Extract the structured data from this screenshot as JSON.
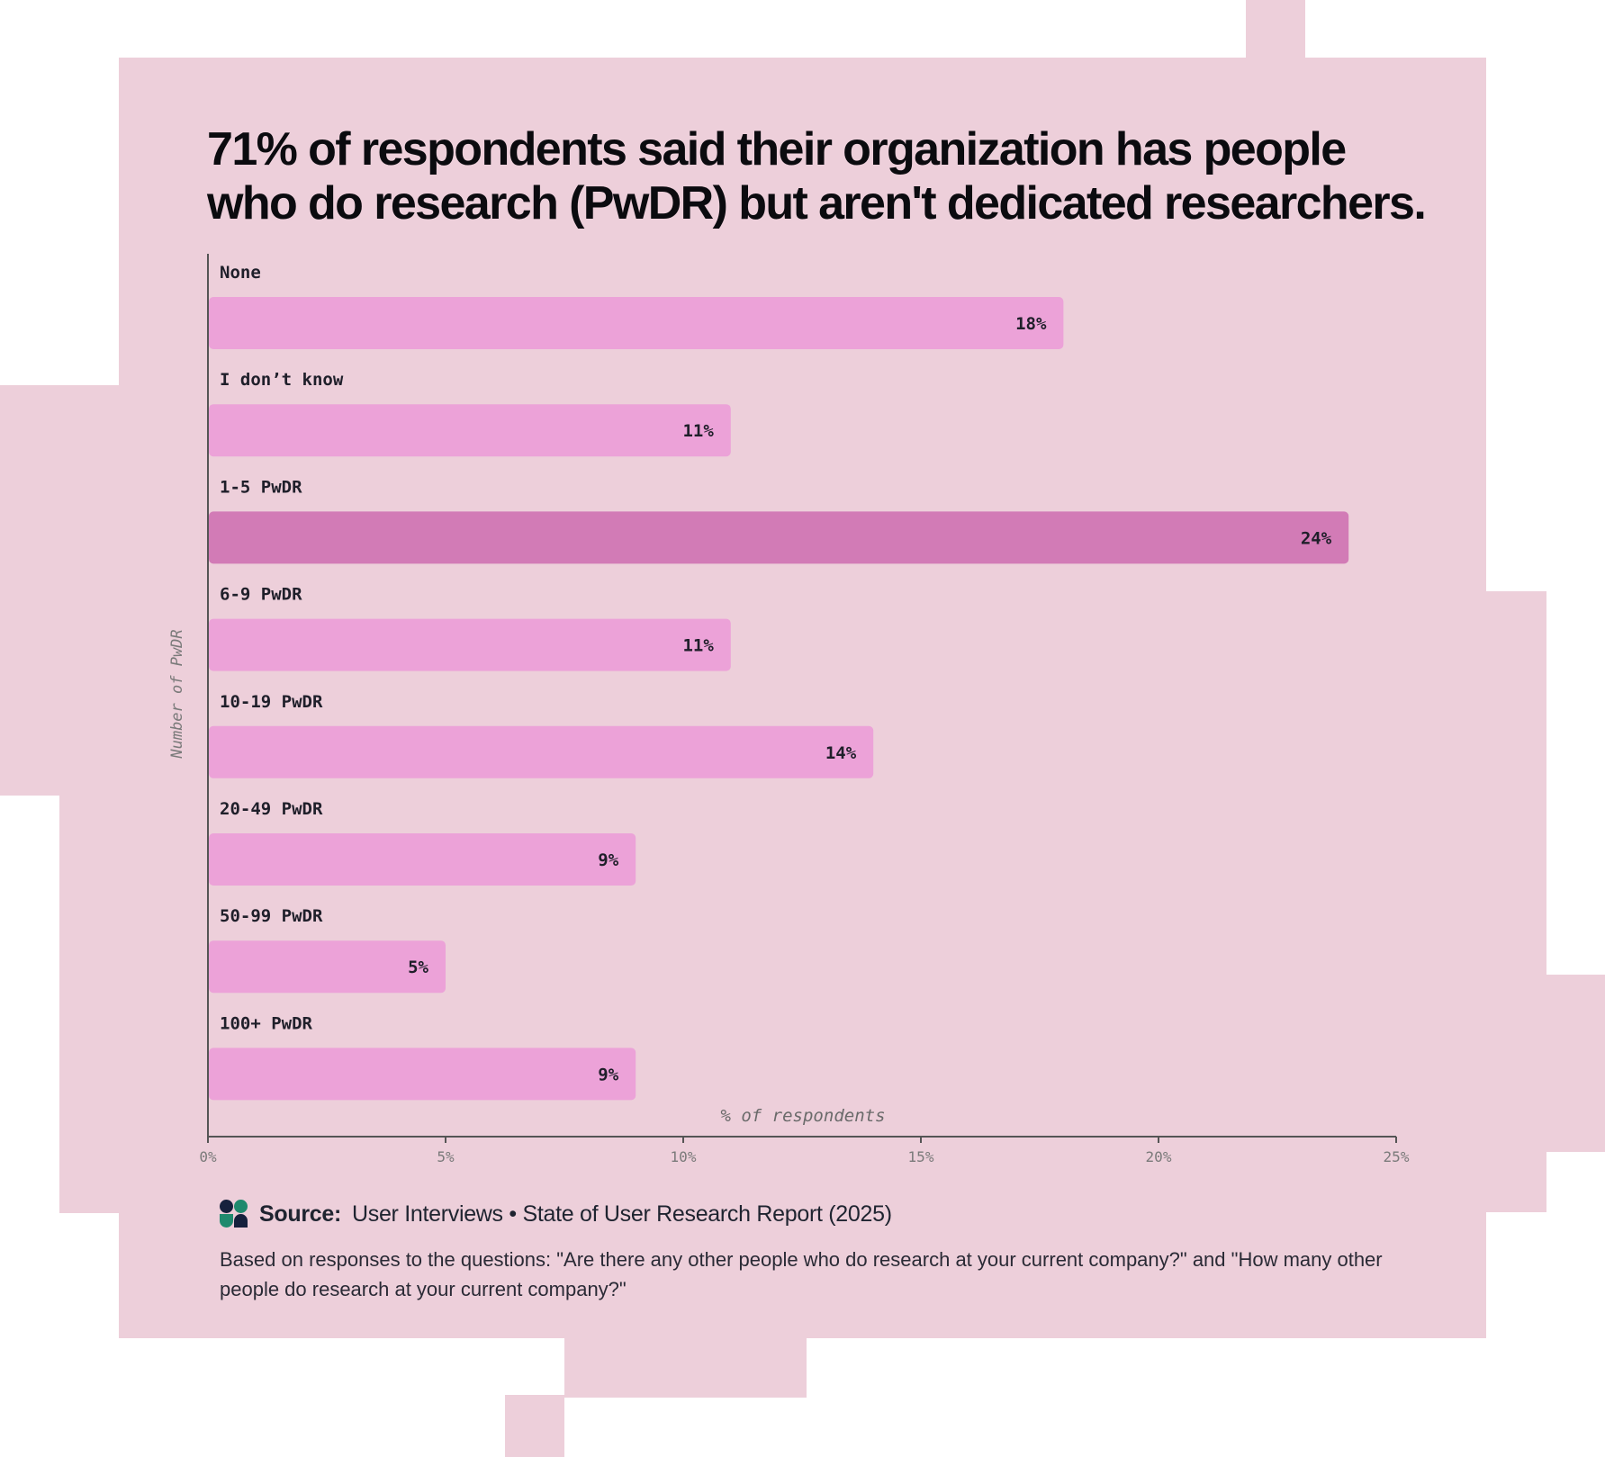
{
  "headline": "71% of respondents said their organization has people who do research (PwDR) but aren't dedicated researchers.",
  "colors": {
    "background": "#edcfda",
    "bar": "#eca2d8",
    "bar_highlight": "#d27bb6",
    "text": "#1f1f2a",
    "axis": "#555555",
    "logo_dark": "#16213d",
    "logo_green": "#1f8a6e"
  },
  "chart_data": {
    "type": "bar",
    "orientation": "horizontal",
    "categories": [
      "None",
      "I don’t know",
      "1-5 PwDR",
      "6-9 PwDR",
      "10-19 PwDR",
      "20-49 PwDR",
      "50-99 PwDR",
      "100+ PwDR"
    ],
    "values": [
      18,
      11,
      24,
      11,
      14,
      9,
      5,
      9
    ],
    "value_labels": [
      "18%",
      "11%",
      "24%",
      "11%",
      "14%",
      "9%",
      "5%",
      "9%"
    ],
    "highlight_category": "1-5 PwDR",
    "xlabel": "% of respondents",
    "ylabel": "Number of PwDR",
    "xlim": [
      0,
      25
    ],
    "x_ticks": [
      0,
      5,
      10,
      15,
      20,
      25
    ],
    "x_tick_labels": [
      "0%",
      "5%",
      "10%",
      "15%",
      "20%",
      "25%"
    ],
    "grid": false,
    "legend": "none"
  },
  "footer": {
    "source_label": "Source:",
    "source_text": "User Interviews • State of User Research Report (2025)",
    "logo_icon": "user-interviews-logo-icon",
    "note": "Based on responses to the questions: \"Are there any other people who do research at your current company?\" and \"How many other people do research at your current company?\""
  }
}
